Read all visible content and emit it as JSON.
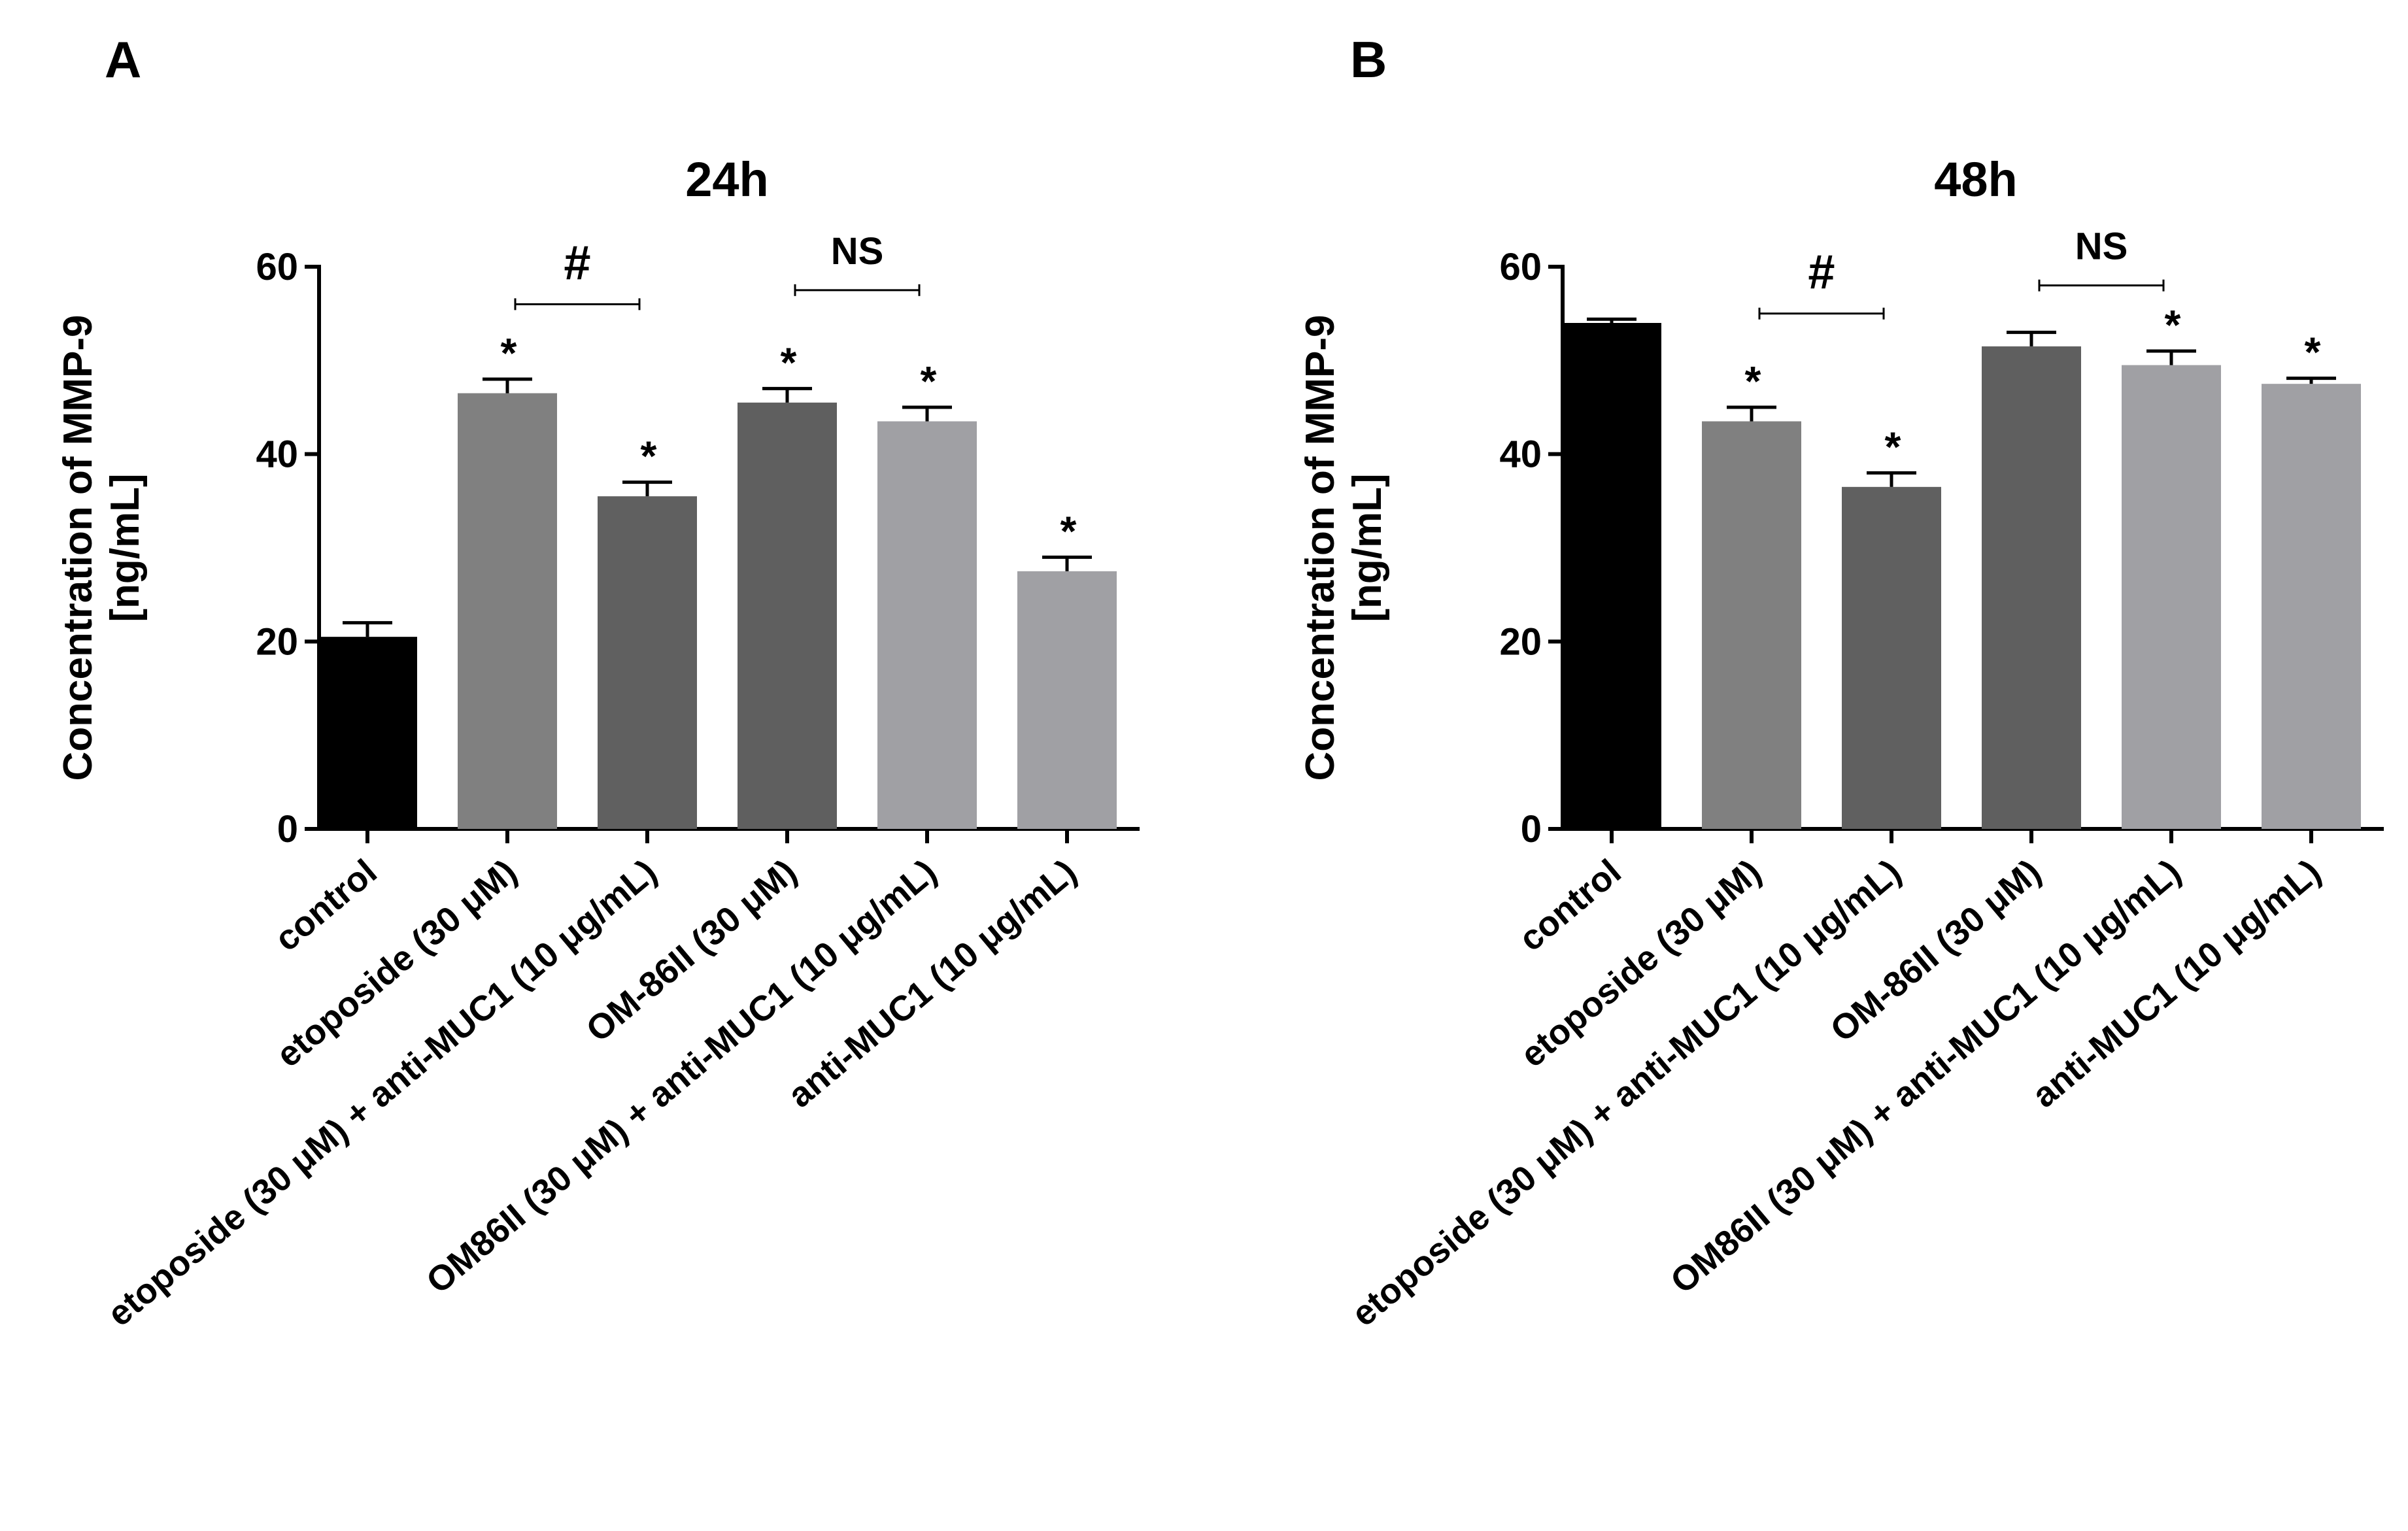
{
  "panels": [
    {
      "letter": "A"
    },
    {
      "letter": "B"
    }
  ],
  "chart_data": [
    {
      "type": "bar",
      "title": "24h",
      "ylabel_line1": "Concentration of MMP-9",
      "ylabel_line2": "[ng/mL]",
      "xlabel": "",
      "ylim": [
        0,
        60
      ],
      "yticks": [
        0,
        20,
        40,
        60
      ],
      "categories": [
        "control",
        "etoposide (30  μM)",
        "etoposide (30  μM) + anti-MUC1 (10  μg/mL)",
        "OM-86II (30  μM)",
        "OM86II (30  μM) + anti-MUC1 (10  μg/mL)",
        "anti-MUC1 (10  μg/mL)"
      ],
      "values": [
        20.5,
        46.5,
        35.5,
        45.5,
        43.5,
        27.5
      ],
      "errors": [
        1.5,
        1.5,
        1.5,
        1.5,
        1.5,
        1.5
      ],
      "colors": [
        "#000000",
        "#808080",
        "#606060",
        "#5f5f5f",
        "#a0a0a4",
        "#a0a0a4"
      ],
      "significance": [
        "",
        "*",
        "*",
        "*",
        "*",
        "*"
      ],
      "comparisons": [
        {
          "from": 1,
          "to": 2,
          "label": "#",
          "level": 56
        },
        {
          "from": 3,
          "to": 4,
          "label": "NS",
          "level": 57.5
        }
      ]
    },
    {
      "type": "bar",
      "title": "48h",
      "ylabel_line1": "Concentration of MMP-9",
      "ylabel_line2": "[ng/mL]",
      "xlabel": "",
      "ylim": [
        0,
        60
      ],
      "yticks": [
        0,
        20,
        40,
        60
      ],
      "categories": [
        "control",
        "etoposide (30  μM)",
        "etoposide (30  μM) + anti-MUC1 (10  μg/mL)",
        "OM-86II (30  μM)",
        "OM86II (30  μM) + anti-MUC1 (10  μg/mL)",
        "anti-MUC1 (10  μg/mL)"
      ],
      "values": [
        54.0,
        43.5,
        36.5,
        51.5,
        49.5,
        47.5
      ],
      "errors": [
        0.4,
        1.5,
        1.5,
        1.5,
        1.5,
        0.6
      ],
      "colors": [
        "#000000",
        "#808080",
        "#606060",
        "#5f5f5f",
        "#a0a0a4",
        "#a0a0a4"
      ],
      "significance": [
        "",
        "*",
        "*",
        "",
        "*",
        "*"
      ],
      "comparisons": [
        {
          "from": 1,
          "to": 2,
          "label": "#",
          "level": 55
        },
        {
          "from": 3,
          "to": 4,
          "label": "NS",
          "level": 58
        }
      ]
    }
  ]
}
